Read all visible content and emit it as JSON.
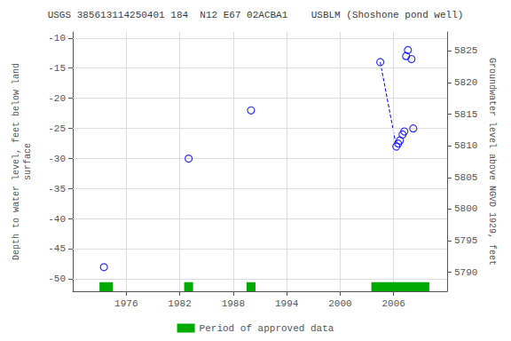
{
  "chart_data": {
    "type": "scatter",
    "title": "USGS 385613114250401 184  N12 E67 02ACBA1    USBLM (Shoshone pond well)",
    "ylabel": "Depth to water level, feet below land\nsurface",
    "y2label": "Groundwater level above NGVD 1929, feet",
    "xlim": [
      1970,
      2012
    ],
    "xticks": [
      1976,
      1982,
      1988,
      1994,
      2000,
      2006
    ],
    "ylim": [
      -52,
      -9
    ],
    "yticks": [
      -50,
      -45,
      -40,
      -35,
      -30,
      -25,
      -20,
      -15,
      -10
    ],
    "y2lim": [
      5787,
      5828
    ],
    "y2ticks": [
      5790,
      5795,
      5800,
      5805,
      5810,
      5815,
      5820,
      5825
    ],
    "grid": true,
    "legend": "bottom",
    "series": [
      {
        "type": "scatter",
        "color": "blue",
        "marker": "open circle",
        "x": [
          1973.5,
          1983.0,
          1990.0,
          2004.5,
          2006.3,
          2006.5,
          2006.7,
          2007.0,
          2007.2,
          2007.4,
          2007.6,
          2008.0,
          2008.2
        ],
        "values": [
          -48,
          -30,
          -22,
          -14,
          -28,
          -27.5,
          -27,
          -26,
          -25.5,
          -13,
          -12,
          -13.5,
          -25
        ]
      },
      {
        "type": "line",
        "color": "blue",
        "line_style": "dashed",
        "x": [
          2004.5,
          2006.3
        ],
        "values": [
          -14,
          -28
        ]
      },
      {
        "type": "bar",
        "name": "Period of approved data",
        "color": "#00aa00",
        "periods": [
          [
            1973.0,
            1974.5
          ],
          [
            1982.5,
            1983.5
          ],
          [
            1989.5,
            1990.5
          ],
          [
            2003.5,
            2010.0
          ]
        ]
      }
    ]
  }
}
